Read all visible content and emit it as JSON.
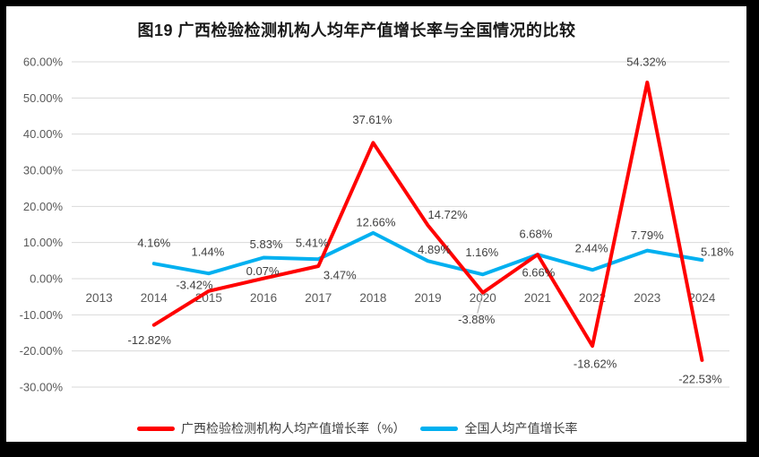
{
  "page": {
    "background_color": "#000000",
    "chart_background_color": "#FFFFFF"
  },
  "chart_data": {
    "type": "line",
    "title": "图19 广西检验检测机构人均年产值增长率与全国情况的比较",
    "categories": [
      "2013",
      "2014",
      "2015",
      "2016",
      "2017",
      "2018",
      "2019",
      "2020",
      "2021",
      "2022",
      "2023",
      "2024"
    ],
    "series": [
      {
        "name": "广西检验检测机构人均产值增长率（%）",
        "color": "#FF0000",
        "values": [
          null,
          -12.82,
          -3.42,
          0.07,
          3.47,
          37.61,
          14.72,
          -3.88,
          6.66,
          -18.62,
          54.32,
          -22.53
        ],
        "labels": [
          "",
          "-12.82%",
          "-3.42%",
          "0.07%",
          "3.47%",
          "37.61%",
          "14.72%",
          "-3.88%",
          "6.66%",
          "-18.62%",
          "54.32%",
          "-22.53%"
        ],
        "label_offsets": [
          null,
          [
            -5,
            17
          ],
          [
            -16,
            -7
          ],
          [
            -1,
            -8
          ],
          [
            24,
            10
          ],
          [
            -1,
            -26
          ],
          [
            22,
            -12
          ],
          [
            -7,
            30
          ],
          [
            1,
            20
          ],
          [
            3,
            20
          ],
          [
            -1,
            -23
          ],
          [
            -2,
            21
          ]
        ]
      },
      {
        "name": "全国人均产值增长率",
        "color": "#00B0F0",
        "values": [
          null,
          4.16,
          1.44,
          5.83,
          5.41,
          12.66,
          4.89,
          1.16,
          6.68,
          2.44,
          7.79,
          5.18
        ],
        "labels": [
          "",
          "4.16%",
          "1.44%",
          "5.83%",
          "5.41%",
          "12.66%",
          "4.89%",
          "1.16%",
          "6.68%",
          "2.44%",
          "7.79%",
          "5.18%"
        ],
        "label_offsets": [
          null,
          [
            0,
            -23
          ],
          [
            -1,
            -24
          ],
          [
            3,
            -15
          ],
          [
            -7,
            -18
          ],
          [
            3,
            -12
          ],
          [
            7,
            -13
          ],
          [
            -1,
            -25
          ],
          [
            -2,
            -23
          ],
          [
            -1,
            -24
          ],
          [
            0,
            -17
          ],
          [
            17,
            -9
          ]
        ]
      }
    ],
    "ylim": [
      -30,
      60
    ],
    "ytick_step": 10,
    "ytick_labels": [
      "60.00%",
      "50.00%",
      "40.00%",
      "30.00%",
      "20.00%",
      "10.00%",
      "0.00%",
      "-10.00%",
      "-20.00%",
      "-30.00%"
    ],
    "grid": true,
    "grid_color": "#D9D9D9",
    "axis_text_color": "#595959",
    "data_label_color": "#404040",
    "leader_line_color": "#A6A6A6",
    "leader_lines": [
      {
        "series": 0,
        "point": 7,
        "dx": -6,
        "dy": 23
      }
    ],
    "legend_position": "bottom"
  }
}
